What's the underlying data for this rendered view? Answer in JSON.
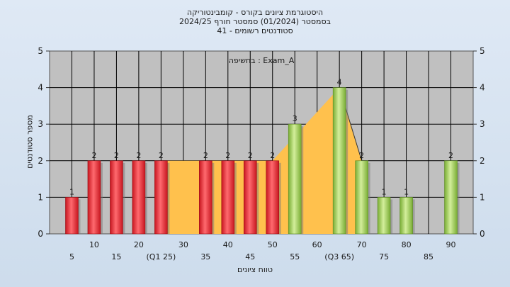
{
  "header": {
    "line1": "היסטוגרמת ציונים בקורס - קומבינטוריקה",
    "line2": "בסמסטר  (01/2024)  סמסטר חורף 2024/25",
    "line3": "סטודנטים רשומים - 41"
  },
  "chart_data": {
    "type": "bar",
    "annotation": "בחשיפה : Exam_A",
    "xlabel": "טווח ציונים",
    "ylabel": "מספר סטודנטים",
    "ylim": [
      0,
      5
    ],
    "yticks": [
      0,
      1,
      2,
      3,
      4,
      5
    ],
    "grid": true,
    "categories": [
      5,
      10,
      15,
      20,
      25,
      30,
      35,
      40,
      45,
      50,
      55,
      60,
      65,
      70,
      75,
      80,
      85,
      90
    ],
    "tick_labels": [
      "5",
      "10",
      "15",
      "20",
      "(Q1 25)",
      "30",
      "35",
      "40",
      "45",
      "50",
      "55",
      "60",
      "(Q3 65)",
      "70",
      "75",
      "80",
      "85",
      "90"
    ],
    "values": [
      1,
      2,
      2,
      2,
      2,
      0,
      2,
      2,
      2,
      2,
      3,
      0,
      4,
      2,
      1,
      1,
      0,
      2
    ],
    "bar_colors": [
      "#e8303a",
      "#e8303a",
      "#e8303a",
      "#e8303a",
      "#e8303a",
      "#e8303a",
      "#e8303a",
      "#e8303a",
      "#e8303a",
      "#e8303a",
      "#9ccc5a",
      "#9ccc5a",
      "#9ccc5a",
      "#9ccc5a",
      "#9ccc5a",
      "#9ccc5a",
      "#9ccc5a",
      "#9ccc5a"
    ],
    "quartile_area": {
      "color": "#ffc14d",
      "points": [
        [
          25,
          2
        ],
        [
          50,
          2
        ],
        [
          65,
          4
        ],
        [
          70,
          2
        ]
      ]
    },
    "colors": {
      "plot_bg": "#c0c0c0",
      "grid": "#000000",
      "low": "#e8303a",
      "high": "#9ccc5a"
    }
  }
}
